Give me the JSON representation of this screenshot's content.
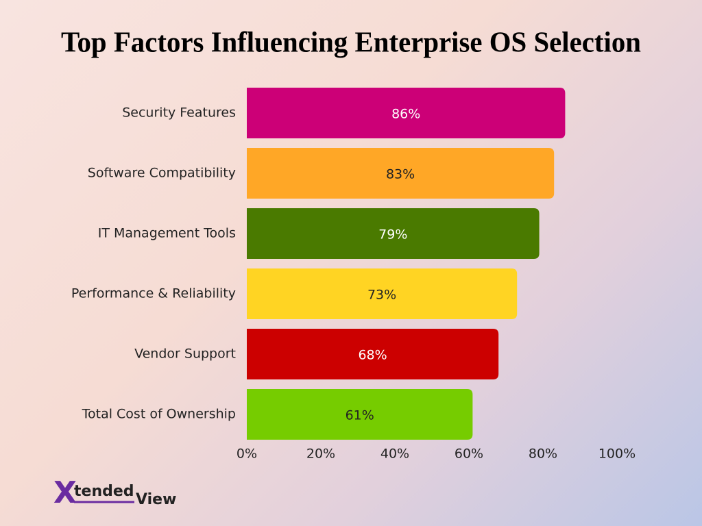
{
  "chart_data": {
    "type": "bar",
    "orientation": "horizontal",
    "title": "Top Factors Influencing Enterprise OS Selection",
    "categories": [
      "Security Features",
      "Software Compatibility",
      "IT Management Tools",
      "Performance & Reliability",
      "Vendor Support",
      "Total Cost of Ownership"
    ],
    "values": [
      86,
      83,
      79,
      73,
      68,
      61
    ],
    "value_labels": [
      "86%",
      "83%",
      "79%",
      "73%",
      "68%",
      "61%"
    ],
    "colors": [
      "#cc0077",
      "#ffa726",
      "#4a7a00",
      "#ffd423",
      "#cc0000",
      "#76cc00"
    ],
    "xlim": [
      0,
      100
    ],
    "xticks": [
      {
        "value": 0,
        "label": "0%"
      },
      {
        "value": 20,
        "label": "20%"
      },
      {
        "value": 40,
        "label": "40%"
      },
      {
        "value": 60,
        "label": "60%"
      },
      {
        "value": 80,
        "label": "80%"
      },
      {
        "value": 100,
        "label": "100%"
      }
    ],
    "grid": false
  },
  "logo": {
    "mark": "X",
    "text": "tended",
    "suffix": "View"
  }
}
